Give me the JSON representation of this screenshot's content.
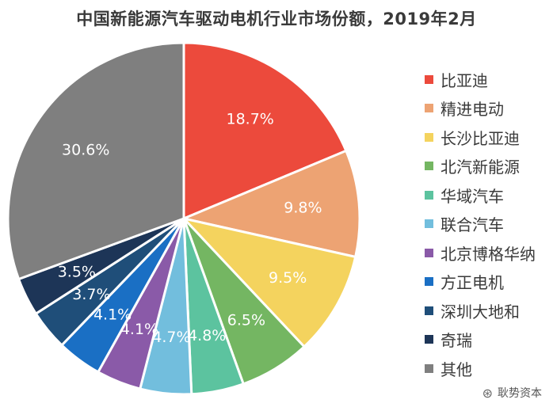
{
  "chart_data": {
    "type": "pie",
    "title": "中国新能源汽车驱动电机行业市场份额，2019年2月",
    "start_angle_deg": 0,
    "direction": "clockwise",
    "slices": [
      {
        "label": "比亚迪",
        "value": 18.7,
        "display": "18.7%",
        "color": "#ec4a3c"
      },
      {
        "label": "精进电动",
        "value": 9.8,
        "display": "9.8%",
        "color": "#eda373"
      },
      {
        "label": "长沙比亚迪",
        "value": 9.5,
        "display": "9.5%",
        "color": "#f4d35e"
      },
      {
        "label": "北汽新能源",
        "value": 6.5,
        "display": "6.5%",
        "color": "#74b662"
      },
      {
        "label": "华域汽车",
        "value": 4.8,
        "display": "4.8%",
        "color": "#5cc39f"
      },
      {
        "label": "联合汽车",
        "value": 4.7,
        "display": "4.7%",
        "color": "#72bedd"
      },
      {
        "label": "北京博格华纳",
        "value": 4.1,
        "display": "4.1%",
        "color": "#8a5aa8"
      },
      {
        "label": "方正电机",
        "value": 4.1,
        "display": "4.1%",
        "color": "#1a6fc4"
      },
      {
        "label": "深圳大地和",
        "value": 3.7,
        "display": "3.7%",
        "color": "#1f4e79"
      },
      {
        "label": "奇瑞",
        "value": 3.5,
        "display": "3.5%",
        "color": "#1d3557"
      },
      {
        "label": "其他",
        "value": 30.6,
        "display": "30.6%",
        "color": "#7f7f7f"
      }
    ]
  },
  "watermark": {
    "text": "耿势资本",
    "icon": "wechat-icon"
  }
}
